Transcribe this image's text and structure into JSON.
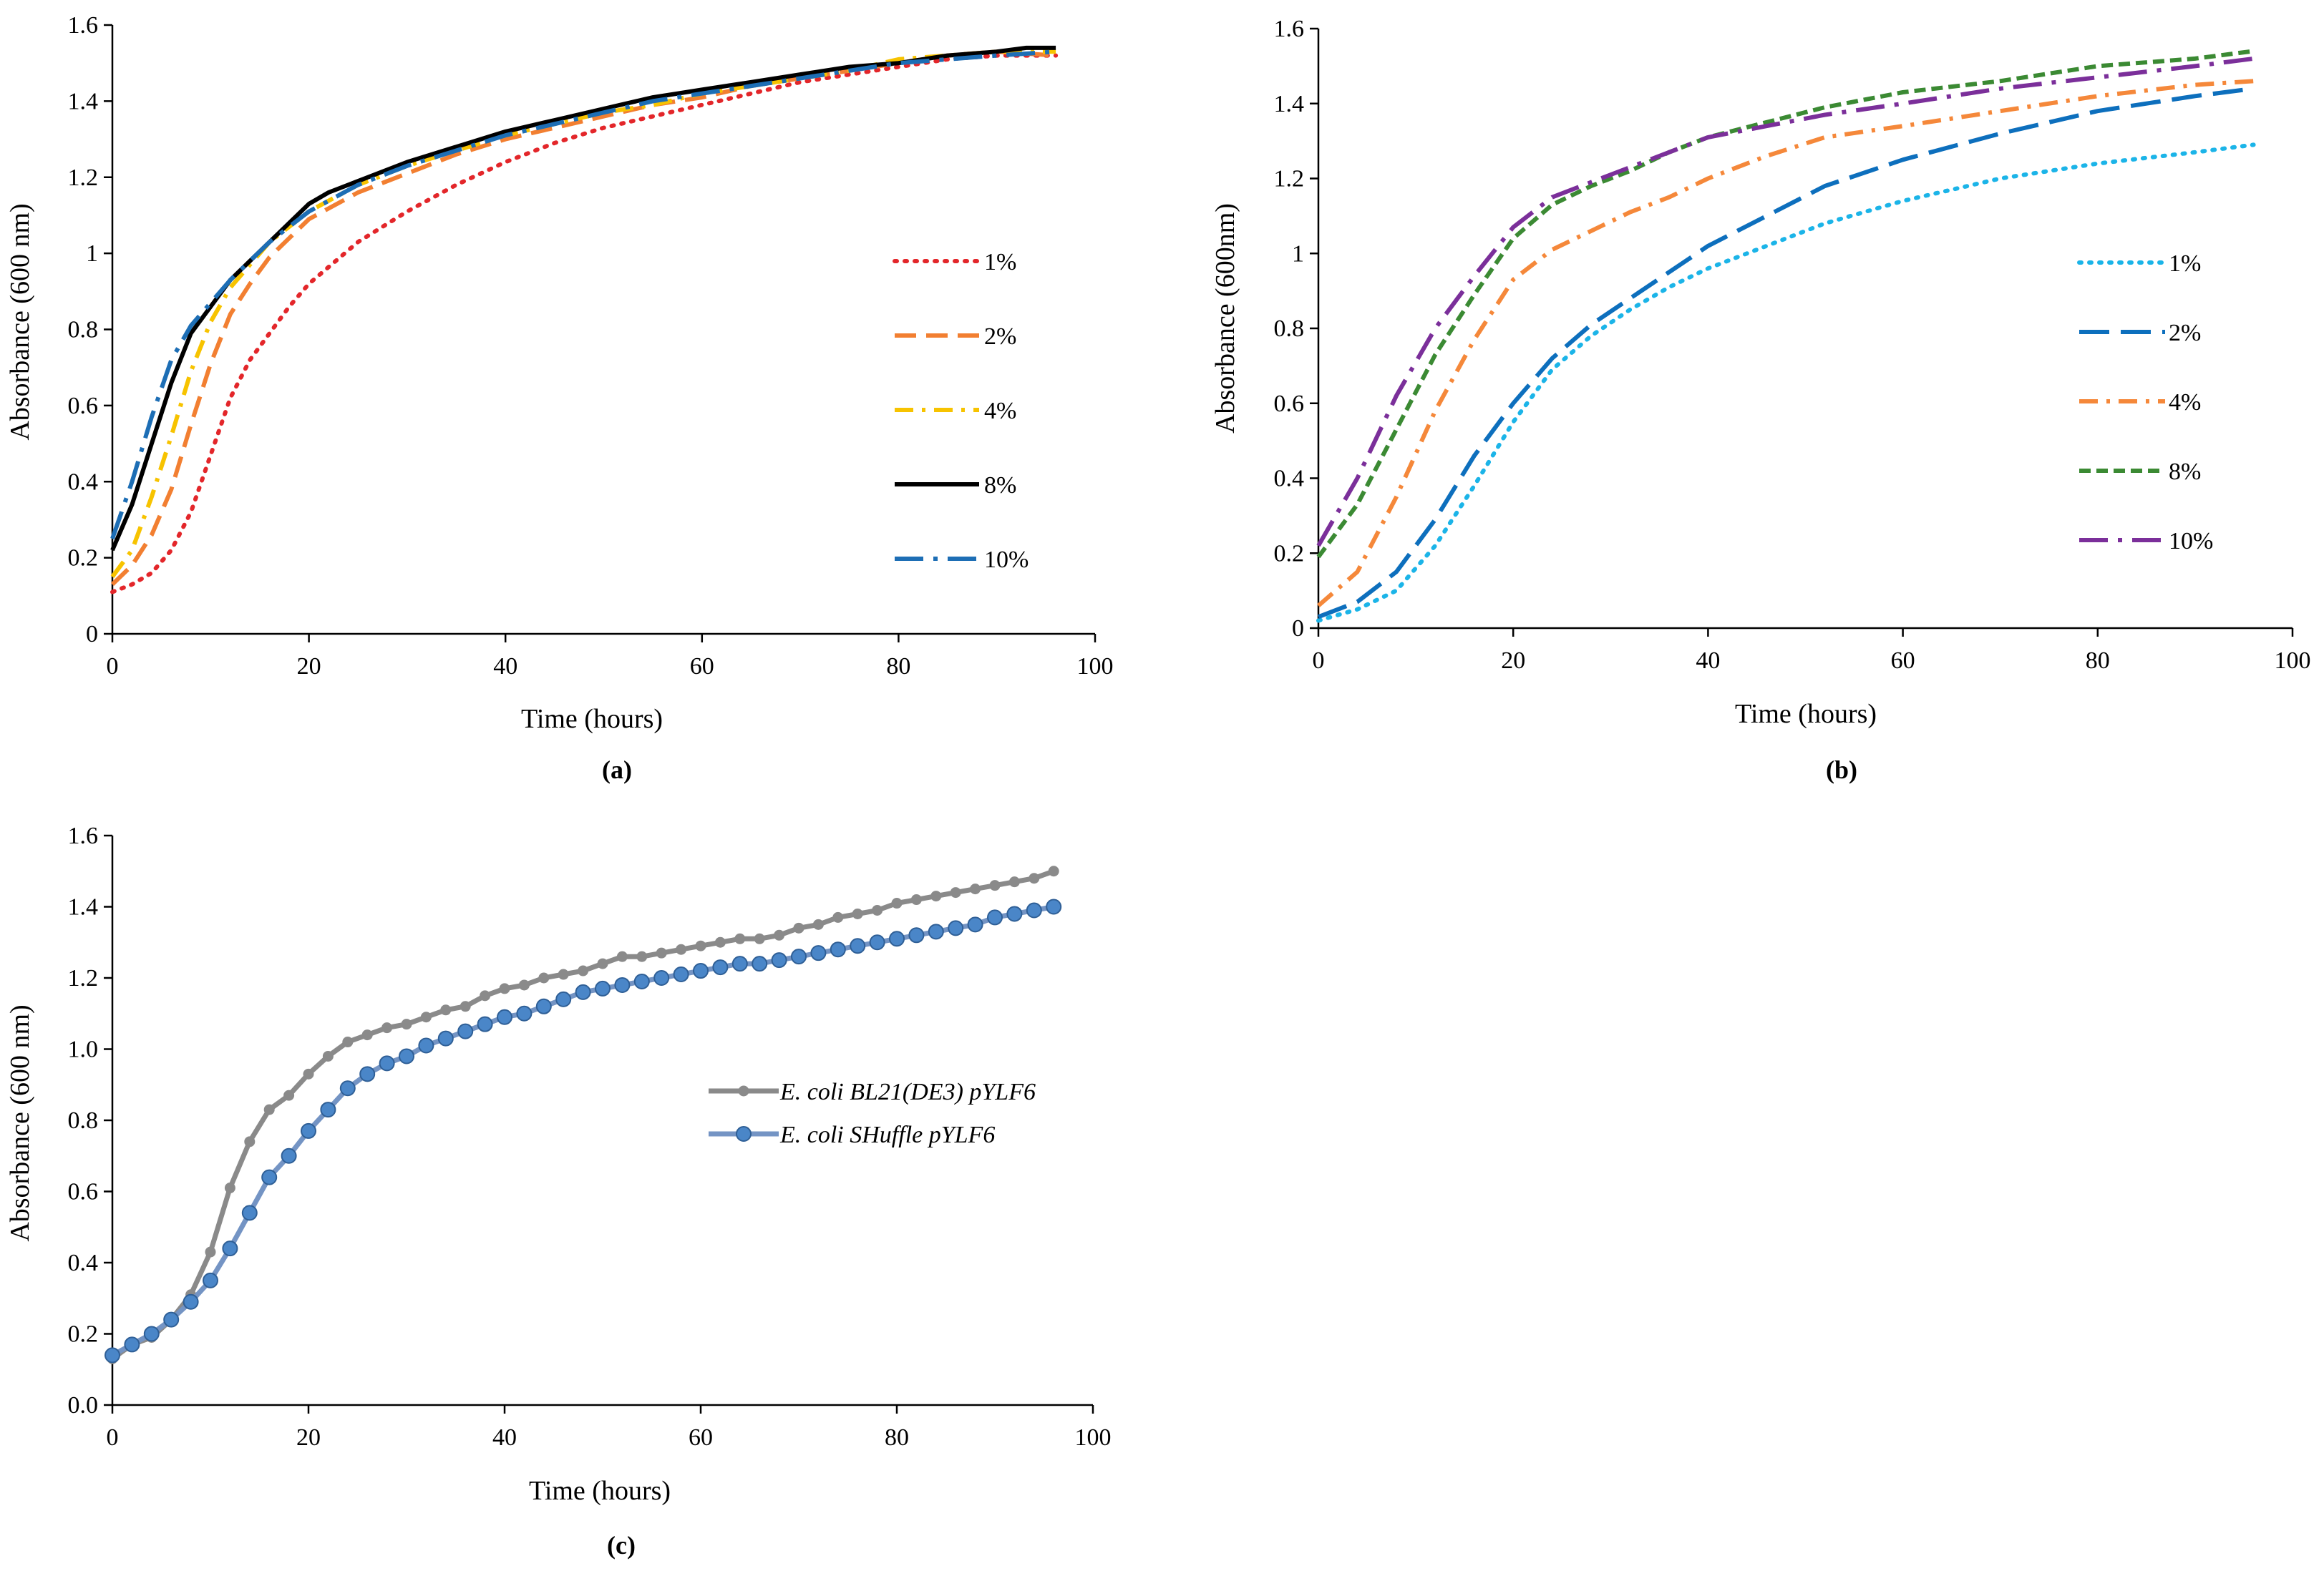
{
  "chart_data": [
    {
      "type": "line",
      "panel_label": "(a)",
      "xlabel": "Time (hours)",
      "ylabel": "Absorbance (600 nm)",
      "xlim": [
        0,
        100
      ],
      "ylim": [
        0,
        1.6
      ],
      "xticks": [
        "0",
        "20",
        "40",
        "60",
        "80",
        "100"
      ],
      "yticks": [
        "0",
        "0.2",
        "0.4",
        "0.6",
        "0.8",
        "1",
        "1.2",
        "1.4",
        "1.6"
      ],
      "legend_position": "right-middle",
      "series": [
        {
          "name": "1%",
          "color": "#e3262a",
          "dash": "dot",
          "x": [
            0,
            2,
            4,
            6,
            8,
            10,
            12,
            14,
            16,
            18,
            20,
            25,
            30,
            35,
            40,
            45,
            50,
            55,
            60,
            65,
            70,
            75,
            80,
            85,
            90,
            96
          ],
          "y": [
            0.11,
            0.13,
            0.16,
            0.22,
            0.32,
            0.47,
            0.62,
            0.72,
            0.79,
            0.86,
            0.92,
            1.03,
            1.11,
            1.18,
            1.24,
            1.29,
            1.33,
            1.36,
            1.39,
            1.42,
            1.45,
            1.47,
            1.49,
            1.51,
            1.52,
            1.52
          ]
        },
        {
          "name": "2%",
          "color": "#f27f31",
          "dash": "dash",
          "x": [
            0,
            2,
            4,
            6,
            8,
            10,
            12,
            14,
            16,
            18,
            20,
            25,
            30,
            35,
            40,
            45,
            50,
            55,
            60,
            65,
            70,
            75,
            80,
            85,
            90,
            96
          ],
          "y": [
            0.13,
            0.18,
            0.26,
            0.38,
            0.55,
            0.71,
            0.84,
            0.92,
            0.99,
            1.04,
            1.09,
            1.16,
            1.21,
            1.26,
            1.3,
            1.33,
            1.36,
            1.39,
            1.41,
            1.44,
            1.46,
            1.48,
            1.5,
            1.52,
            1.53,
            1.52
          ]
        },
        {
          "name": "4%",
          "color": "#f7c300",
          "dash": "dashdot",
          "x": [
            0,
            2,
            4,
            6,
            8,
            10,
            12,
            14,
            16,
            18,
            20,
            25,
            30,
            35,
            40,
            45,
            50,
            55,
            60,
            65,
            70,
            75,
            80,
            85,
            90,
            96
          ],
          "y": [
            0.15,
            0.22,
            0.36,
            0.52,
            0.69,
            0.82,
            0.91,
            0.97,
            1.03,
            1.07,
            1.11,
            1.18,
            1.23,
            1.27,
            1.31,
            1.34,
            1.37,
            1.39,
            1.42,
            1.44,
            1.46,
            1.48,
            1.51,
            1.52,
            1.53,
            1.53
          ]
        },
        {
          "name": "8%",
          "color": "#000000",
          "dash": "solid",
          "x": [
            0,
            2,
            4,
            6,
            8,
            10,
            12,
            14,
            16,
            18,
            20,
            22,
            25,
            30,
            35,
            40,
            45,
            50,
            55,
            60,
            65,
            70,
            75,
            80,
            85,
            90,
            93,
            96
          ],
          "y": [
            0.22,
            0.34,
            0.5,
            0.66,
            0.79,
            0.86,
            0.93,
            0.98,
            1.03,
            1.08,
            1.13,
            1.16,
            1.19,
            1.24,
            1.28,
            1.32,
            1.35,
            1.38,
            1.41,
            1.43,
            1.45,
            1.47,
            1.49,
            1.5,
            1.52,
            1.53,
            1.54,
            1.54
          ]
        },
        {
          "name": "10%",
          "color": "#1d6eb5",
          "dash": "longdashdot",
          "x": [
            0,
            2,
            4,
            6,
            8,
            10,
            12,
            14,
            16,
            18,
            20,
            25,
            30,
            35,
            40,
            45,
            50,
            55,
            60,
            65,
            70,
            75,
            80,
            85,
            90,
            96
          ],
          "y": [
            0.25,
            0.4,
            0.57,
            0.72,
            0.81,
            0.87,
            0.93,
            0.98,
            1.03,
            1.07,
            1.11,
            1.18,
            1.23,
            1.27,
            1.31,
            1.34,
            1.37,
            1.4,
            1.42,
            1.44,
            1.46,
            1.48,
            1.5,
            1.51,
            1.52,
            1.53
          ]
        }
      ]
    },
    {
      "type": "line",
      "panel_label": "(b)",
      "xlabel": "Time (hours)",
      "ylabel": "Absorbance (600nm)",
      "xlim": [
        0,
        100
      ],
      "ylim": [
        0,
        1.6
      ],
      "xticks": [
        "0",
        "20",
        "40",
        "60",
        "80",
        "100"
      ],
      "yticks": [
        "0",
        "0.2",
        "0.4",
        "0.6",
        "0.8",
        "1",
        "1.2",
        "1.4",
        "1.6"
      ],
      "legend_position": "right-middle",
      "series": [
        {
          "name": "1%",
          "color": "#1bb4e8",
          "dash": "dot",
          "x": [
            0,
            4,
            8,
            12,
            16,
            20,
            24,
            28,
            32,
            36,
            40,
            46,
            52,
            60,
            70,
            80,
            90,
            96
          ],
          "y": [
            0.02,
            0.05,
            0.1,
            0.22,
            0.38,
            0.55,
            0.69,
            0.78,
            0.85,
            0.91,
            0.96,
            1.02,
            1.08,
            1.14,
            1.2,
            1.24,
            1.27,
            1.29
          ]
        },
        {
          "name": "2%",
          "color": "#0d6fbd",
          "dash": "longdash",
          "x": [
            0,
            4,
            8,
            12,
            16,
            20,
            24,
            28,
            32,
            36,
            40,
            46,
            52,
            60,
            70,
            80,
            90,
            96
          ],
          "y": [
            0.03,
            0.07,
            0.15,
            0.29,
            0.46,
            0.6,
            0.72,
            0.81,
            0.88,
            0.95,
            1.02,
            1.1,
            1.18,
            1.25,
            1.32,
            1.38,
            1.42,
            1.44
          ]
        },
        {
          "name": "4%",
          "color": "#f5883a",
          "dash": "dashdot",
          "x": [
            0,
            4,
            8,
            12,
            16,
            20,
            24,
            28,
            32,
            36,
            40,
            46,
            52,
            60,
            70,
            80,
            90,
            96
          ],
          "y": [
            0.06,
            0.15,
            0.35,
            0.58,
            0.77,
            0.93,
            1.01,
            1.06,
            1.11,
            1.15,
            1.2,
            1.26,
            1.31,
            1.34,
            1.38,
            1.42,
            1.45,
            1.46
          ]
        },
        {
          "name": "8%",
          "color": "#3b8a33",
          "dash": "shortdash",
          "x": [
            0,
            4,
            8,
            12,
            16,
            20,
            24,
            28,
            32,
            36,
            40,
            46,
            52,
            60,
            70,
            80,
            90,
            96
          ],
          "y": [
            0.19,
            0.33,
            0.53,
            0.73,
            0.89,
            1.04,
            1.13,
            1.18,
            1.22,
            1.27,
            1.31,
            1.35,
            1.39,
            1.43,
            1.46,
            1.5,
            1.52,
            1.54
          ]
        },
        {
          "name": "10%",
          "color": "#7b2f9a",
          "dash": "longdashdot",
          "x": [
            0,
            4,
            8,
            12,
            16,
            20,
            24,
            28,
            32,
            36,
            40,
            46,
            52,
            60,
            70,
            80,
            90,
            96
          ],
          "y": [
            0.22,
            0.4,
            0.62,
            0.8,
            0.94,
            1.07,
            1.15,
            1.19,
            1.23,
            1.27,
            1.31,
            1.34,
            1.37,
            1.4,
            1.44,
            1.47,
            1.5,
            1.52
          ]
        }
      ]
    },
    {
      "type": "line",
      "panel_label": "(c)",
      "xlabel": "Time (hours)",
      "ylabel": "Absorbance (600 nm)",
      "xlim": [
        0,
        100
      ],
      "ylim": [
        0,
        1.6
      ],
      "xticks": [
        "0",
        "20",
        "40",
        "60",
        "80",
        "100"
      ],
      "yticks": [
        "0.0",
        "0.2",
        "0.4",
        "0.6",
        "0.8",
        "1.0",
        "1.2",
        "1.4",
        "1.6"
      ],
      "legend_position": "center",
      "series": [
        {
          "name": "E. coli BL21(DE3) pYLF6",
          "color": "#8a8a8a",
          "marker_fill": "#8a8a8a",
          "marker_size": "small",
          "x": [
            0,
            2,
            4,
            6,
            8,
            10,
            12,
            14,
            16,
            18,
            20,
            22,
            24,
            26,
            28,
            30,
            32,
            34,
            36,
            38,
            40,
            42,
            44,
            46,
            48,
            50,
            52,
            54,
            56,
            58,
            60,
            62,
            64,
            66,
            68,
            70,
            72,
            74,
            76,
            78,
            80,
            82,
            84,
            86,
            88,
            90,
            92,
            94,
            96
          ],
          "y": [
            0.13,
            0.17,
            0.19,
            0.24,
            0.31,
            0.43,
            0.61,
            0.74,
            0.83,
            0.87,
            0.93,
            0.98,
            1.02,
            1.04,
            1.06,
            1.07,
            1.09,
            1.11,
            1.12,
            1.15,
            1.17,
            1.18,
            1.2,
            1.21,
            1.22,
            1.24,
            1.26,
            1.26,
            1.27,
            1.28,
            1.29,
            1.3,
            1.31,
            1.31,
            1.32,
            1.34,
            1.35,
            1.37,
            1.38,
            1.39,
            1.41,
            1.42,
            1.43,
            1.44,
            1.45,
            1.46,
            1.47,
            1.48,
            1.5
          ]
        },
        {
          "name": "E. coli SHuffle pYLF6",
          "color": "#7494c4",
          "marker_fill": "#4a86c8",
          "marker_size": "large",
          "x": [
            0,
            2,
            4,
            6,
            8,
            10,
            12,
            14,
            16,
            18,
            20,
            22,
            24,
            26,
            28,
            30,
            32,
            34,
            36,
            38,
            40,
            42,
            44,
            46,
            48,
            50,
            52,
            54,
            56,
            58,
            60,
            62,
            64,
            66,
            68,
            70,
            72,
            74,
            76,
            78,
            80,
            82,
            84,
            86,
            88,
            90,
            92,
            94,
            96
          ],
          "y": [
            0.14,
            0.17,
            0.2,
            0.24,
            0.29,
            0.35,
            0.44,
            0.54,
            0.64,
            0.7,
            0.77,
            0.83,
            0.89,
            0.93,
            0.96,
            0.98,
            1.01,
            1.03,
            1.05,
            1.07,
            1.09,
            1.1,
            1.12,
            1.14,
            1.16,
            1.17,
            1.18,
            1.19,
            1.2,
            1.21,
            1.22,
            1.23,
            1.24,
            1.24,
            1.25,
            1.26,
            1.27,
            1.28,
            1.29,
            1.3,
            1.31,
            1.32,
            1.33,
            1.34,
            1.35,
            1.37,
            1.38,
            1.39,
            1.4
          ]
        }
      ]
    }
  ]
}
